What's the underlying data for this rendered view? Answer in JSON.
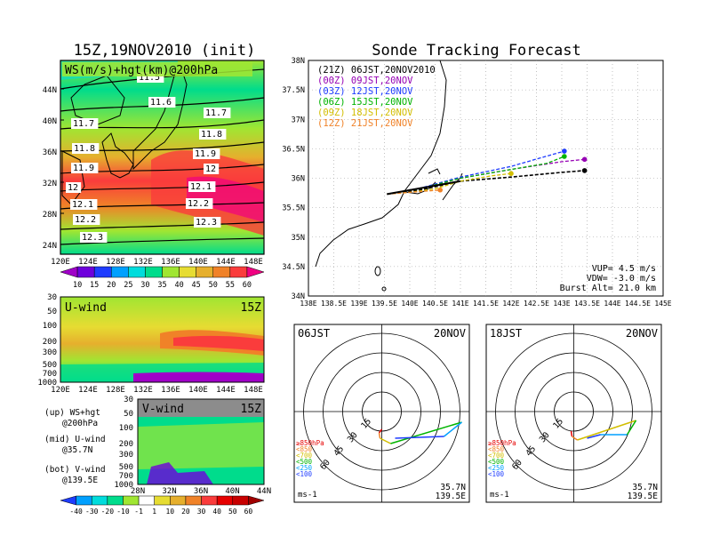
{
  "left_title": "15Z,19NOV2010 (init)",
  "right_title": "Sonde Tracking Forecast",
  "ws_panel": {
    "label": "WS(m/s)+hgt(km)@200hPa",
    "lat_labels": [
      "44N",
      "40N",
      "36N",
      "32N",
      "28N",
      "24N"
    ],
    "lon_labels": [
      "120E",
      "124E",
      "128E",
      "132E",
      "136E",
      "140E",
      "144E",
      "148E"
    ],
    "contour_labels": [
      "11.5",
      "11.6",
      "11.7",
      "11.7",
      "11.8",
      "11.8",
      "11.9",
      "11.9",
      "12",
      "12",
      "12.1",
      "12.1",
      "12.2",
      "12.2",
      "12.3",
      "12.3"
    ],
    "colorbar": [
      "10",
      "15",
      "20",
      "25",
      "30",
      "35",
      "40",
      "45",
      "50",
      "55",
      "60"
    ],
    "colorbar_colors": [
      "#a000c8",
      "#6e00dc",
      "#1e3cff",
      "#00a0ff",
      "#00dcdc",
      "#00dc8c",
      "#a0e632",
      "#e6dc32",
      "#e6af2d",
      "#f08228",
      "#fa3c3c",
      "#f00082"
    ]
  },
  "u_panel": {
    "label": "U-wind",
    "time": "15Z",
    "levels": [
      "30",
      "50",
      "100",
      "200",
      "300",
      "500",
      "700",
      "1000"
    ],
    "lon_labels": [
      "120E",
      "124E",
      "128E",
      "132E",
      "136E",
      "140E",
      "144E",
      "148E"
    ]
  },
  "v_panel": {
    "label": "V-wind",
    "time": "15Z",
    "levels": [
      "30",
      "50",
      "100",
      "200",
      "300",
      "500",
      "700",
      "1000"
    ],
    "lat_labels": [
      "28N",
      "32N",
      "36N",
      "40N",
      "44N"
    ],
    "colorbar": [
      "-40",
      "-30",
      "-20",
      "-10",
      "-1",
      "1",
      "10",
      "20",
      "30",
      "40",
      "50",
      "60"
    ]
  },
  "legend_notes": [
    {
      "a": "(up) WS+hgt",
      "b": "@200hPa"
    },
    {
      "a": "(mid) U-wind",
      "b": "@35.7N"
    },
    {
      "a": "(bot) V-wind",
      "b": "@139.5E"
    }
  ],
  "track_map": {
    "lat_labels": [
      "38N",
      "37.5N",
      "37N",
      "36.5N",
      "36N",
      "35.5N",
      "35N",
      "34.5N",
      "34N"
    ],
    "lon_labels": [
      "138E",
      "138.5E",
      "139E",
      "139.5E",
      "140E",
      "140.5E",
      "141E",
      "141.5E",
      "142E",
      "142.5E",
      "143E",
      "143.5E",
      "144E",
      "144.5E",
      "145E"
    ],
    "runs": [
      {
        "label": "(21Z)  06JST,20NOV2010",
        "color": "#000000"
      },
      {
        "label": "(00Z)  09JST,20NOV",
        "color": "#9600b4"
      },
      {
        "label": "(03Z)  12JST,20NOV",
        "color": "#1e3cff"
      },
      {
        "label": "(06Z)  15JST,20NOV",
        "color": "#00b400"
      },
      {
        "label": "(09Z)  18JST,20NOV",
        "color": "#d2be00"
      },
      {
        "label": "(12Z)  21JST,20NOV",
        "color": "#f08228"
      }
    ],
    "params": [
      "VUP= 4.5 m/s",
      "VDW= -3.0 m/s",
      "Burst Alt= 21.0 km"
    ]
  },
  "hodo_left": {
    "time": "06JST",
    "date": "20NOV",
    "loc1": "35.7N",
    "loc2": "139.5E",
    "unit": "ms-1",
    "rings": [
      "15",
      "30",
      "45",
      "60"
    ]
  },
  "hodo_right": {
    "time": "18JST",
    "date": "20NOV",
    "loc1": "35.7N",
    "loc2": "139.5E",
    "unit": "ms-1",
    "rings": [
      "15",
      "30",
      "45",
      "60"
    ]
  },
  "hodo_levels": [
    {
      "label": "≥850hPa",
      "color": "#e60000"
    },
    {
      "label": "<850",
      "color": "#f08228"
    },
    {
      "label": "<700",
      "color": "#d2be00"
    },
    {
      "label": "<500",
      "color": "#00b400"
    },
    {
      "label": "<250",
      "color": "#00a0ff"
    },
    {
      "label": "<100",
      "color": "#1e3cff"
    }
  ],
  "chart_data": {
    "type": "line",
    "title": "Sonde Tracking Forecast",
    "x_range": [
      138,
      145
    ],
    "y_range": [
      34,
      38
    ],
    "series": [
      {
        "name": "(21Z)  06JST,20NOV2010",
        "points": [
          [
            139.55,
            35.73
          ],
          [
            140.2,
            35.8
          ],
          [
            141.0,
            35.95
          ],
          [
            142.0,
            36.02
          ],
          [
            143.0,
            36.1
          ],
          [
            143.45,
            36.13
          ]
        ]
      },
      {
        "name": "(00Z)  09JST,20NOV",
        "points": [
          [
            139.55,
            35.73
          ],
          [
            140.2,
            35.82
          ],
          [
            141.0,
            36.0
          ],
          [
            142.0,
            36.15
          ],
          [
            143.0,
            36.28
          ],
          [
            143.45,
            36.32
          ]
        ]
      },
      {
        "name": "(03Z)  12JST,20NOV",
        "points": [
          [
            139.55,
            35.73
          ],
          [
            140.2,
            35.83
          ],
          [
            141.0,
            36.02
          ],
          [
            142.0,
            36.2
          ],
          [
            142.6,
            36.35
          ],
          [
            143.05,
            36.46
          ]
        ]
      },
      {
        "name": "(06Z)  15JST,20NOV",
        "points": [
          [
            139.55,
            35.73
          ],
          [
            140.2,
            35.82
          ],
          [
            141.0,
            36.0
          ],
          [
            142.0,
            36.15
          ],
          [
            142.7,
            36.25
          ],
          [
            143.05,
            36.37
          ]
        ]
      },
      {
        "name": "(09Z)  18JST,20NOV",
        "points": [
          [
            139.55,
            35.73
          ],
          [
            140.0,
            35.76
          ],
          [
            140.5,
            35.82
          ],
          [
            141.0,
            35.95
          ],
          [
            141.6,
            36.04
          ],
          [
            142.0,
            36.08
          ]
        ]
      },
      {
        "name": "(12Z)  21JST,20NOV",
        "points": [
          [
            139.55,
            35.73
          ],
          [
            140.0,
            35.76
          ],
          [
            140.6,
            35.8
          ]
        ]
      }
    ]
  }
}
